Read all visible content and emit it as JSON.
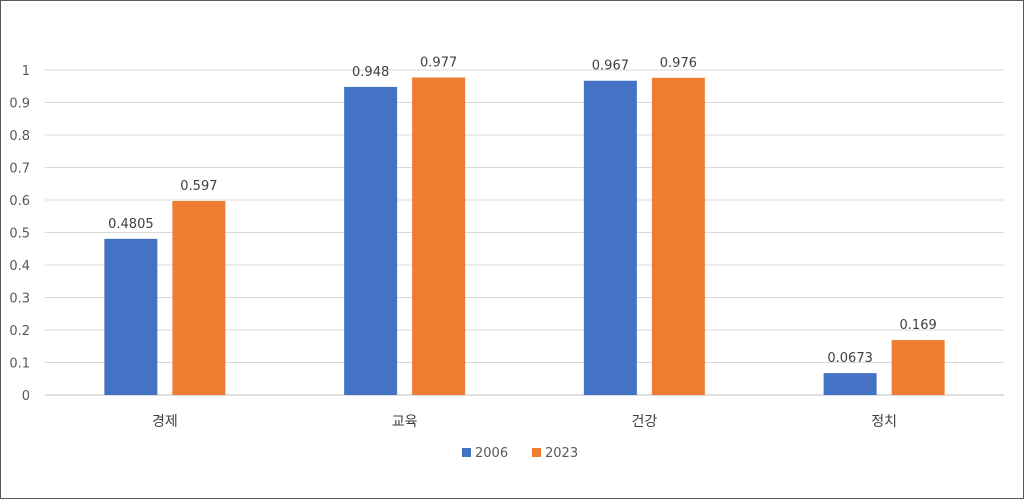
{
  "chart_data": {
    "type": "bar",
    "categories": [
      "경제",
      "교육",
      "건강",
      "정치"
    ],
    "series": [
      {
        "name": "2006",
        "color": "#4472C4",
        "values": [
          0.4805,
          0.948,
          0.967,
          0.0673
        ],
        "labels": [
          "0.4805",
          "0.948",
          "0.967",
          "0.0673"
        ]
      },
      {
        "name": "2023",
        "color": "#ED7D31",
        "values": [
          0.597,
          0.977,
          0.976,
          0.169
        ],
        "labels": [
          "0.597",
          "0.977",
          "0.976",
          "0.169"
        ]
      }
    ],
    "yticks": [
      "0",
      "0.1",
      "0.2",
      "0.3",
      "0.4",
      "0.5",
      "0.6",
      "0.7",
      "0.8",
      "0.9",
      "1"
    ],
    "ylim": [
      0,
      1
    ],
    "grid": true,
    "legend": "bottom"
  }
}
